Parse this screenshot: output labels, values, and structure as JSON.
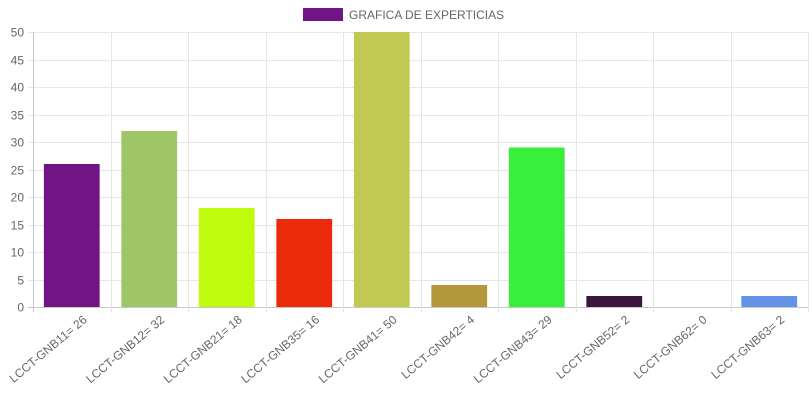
{
  "chart_data": {
    "type": "bar",
    "legend": {
      "label": "GRAFICA DE EXPERTICIAS",
      "swatch_color": "#721485",
      "position": "top"
    },
    "categories": [
      "LCCT-GNB11= 26",
      "LCCT-GNB12= 32",
      "LCCT-GNB21= 18",
      "LCCT-GNB35= 16",
      "LCCT-GNB41= 50",
      "LCCT-GNB42= 4",
      "LCCT-GNB43= 29",
      "LCCT-GNB52= 2",
      "LCCT-GNB62= 0",
      "LCCT-GNB63= 2"
    ],
    "values": [
      26,
      32,
      18,
      16,
      50,
      4,
      29,
      2,
      0,
      2
    ],
    "colors": [
      "#721485",
      "#9ec566",
      "#bffb0e",
      "#eb2a0b",
      "#c2c952",
      "#b2983d",
      "#39ef3c",
      "#3b1740",
      "#7b8f93",
      "#6293e9"
    ],
    "ylim": [
      0,
      50
    ],
    "yticks": [
      0,
      5,
      10,
      15,
      20,
      25,
      30,
      35,
      40,
      45,
      50
    ],
    "grid": true
  }
}
